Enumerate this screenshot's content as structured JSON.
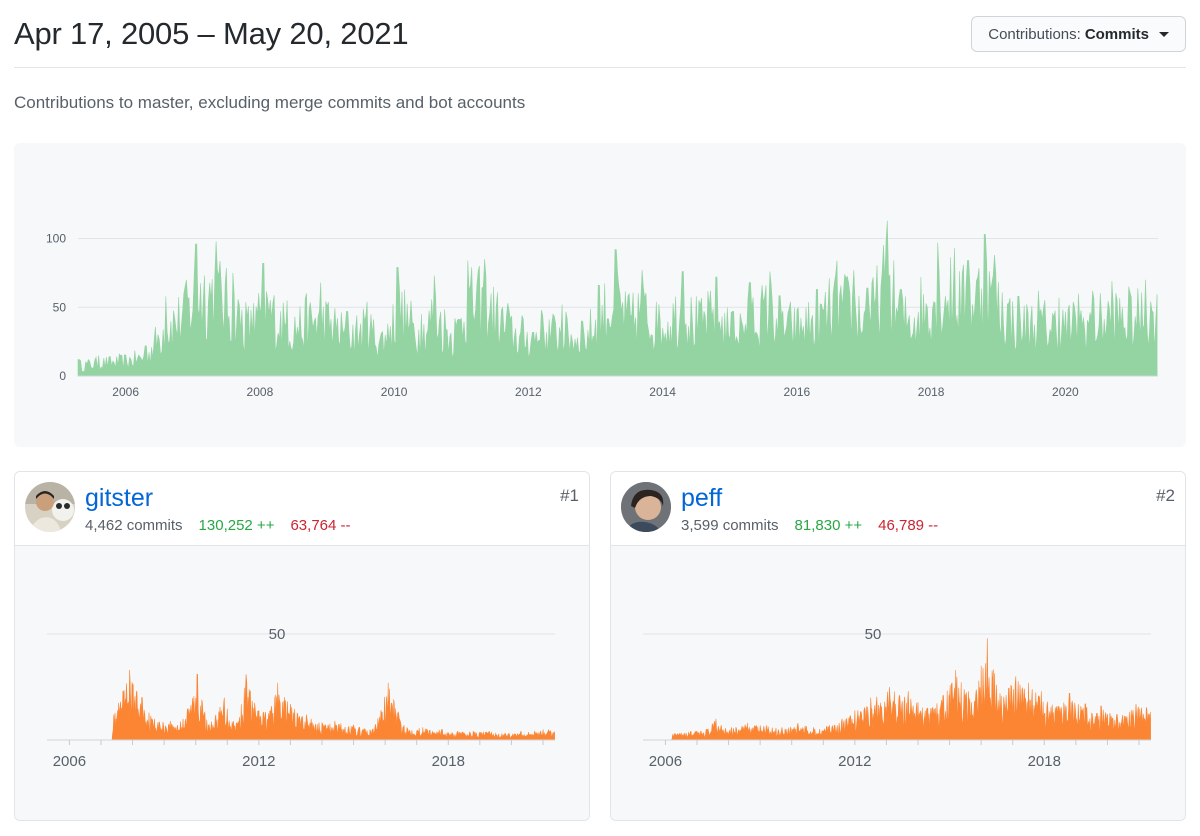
{
  "header": {
    "date_range": "Apr 17, 2005 – May 20, 2021",
    "contrib_label": "Contributions:",
    "contrib_value": "Commits"
  },
  "subtitle": "Contributions to master, excluding merge commits and bot accounts",
  "colors": {
    "main_area": "#94d3a2",
    "user_area": "#fb8532",
    "link": "#0366d6",
    "additions": "#28a745",
    "deletions": "#cb2431"
  },
  "chart_data": [
    {
      "type": "area",
      "series": [
        {
          "values": []
        }
      ],
      "x_tick_labels": [
        "2006",
        "2008",
        "2010",
        "2012",
        "2014",
        "2016",
        "2018",
        "2020"
      ],
      "y_tick_labels": [
        "0",
        "50",
        "100"
      ],
      "xlim": [
        2005.29,
        2021.38
      ],
      "ylim": [
        0,
        120
      ],
      "grid": true,
      "peaks": [
        [
          2005.3,
          12
        ],
        [
          2005.6,
          15
        ],
        [
          2005.9,
          16
        ],
        [
          2006.3,
          22
        ],
        [
          2006.6,
          58
        ],
        [
          2006.9,
          70
        ],
        [
          2007.05,
          96
        ],
        [
          2007.35,
          98
        ],
        [
          2007.6,
          75
        ],
        [
          2007.9,
          53
        ],
        [
          2008.05,
          82
        ],
        [
          2008.4,
          55
        ],
        [
          2008.7,
          60
        ],
        [
          2008.9,
          68
        ],
        [
          2009.3,
          47
        ],
        [
          2009.6,
          54
        ],
        [
          2009.9,
          38
        ],
        [
          2010.05,
          79
        ],
        [
          2010.4,
          45
        ],
        [
          2010.6,
          73
        ],
        [
          2010.9,
          42
        ],
        [
          2011.1,
          84
        ],
        [
          2011.35,
          85
        ],
        [
          2011.7,
          53
        ],
        [
          2011.9,
          44
        ],
        [
          2012.2,
          48
        ],
        [
          2012.5,
          52
        ],
        [
          2012.8,
          40
        ],
        [
          2013.05,
          66
        ],
        [
          2013.3,
          92
        ],
        [
          2013.5,
          60
        ],
        [
          2013.7,
          77
        ],
        [
          2013.9,
          54
        ],
        [
          2014.3,
          76
        ],
        [
          2014.5,
          58
        ],
        [
          2014.8,
          72
        ],
        [
          2015.05,
          47
        ],
        [
          2015.3,
          68
        ],
        [
          2015.6,
          76
        ],
        [
          2015.9,
          54
        ],
        [
          2016.3,
          63
        ],
        [
          2016.6,
          84
        ],
        [
          2016.85,
          77
        ],
        [
          2017.05,
          64
        ],
        [
          2017.35,
          113
        ],
        [
          2017.55,
          63
        ],
        [
          2017.85,
          72
        ],
        [
          2018.1,
          97
        ],
        [
          2018.35,
          93
        ],
        [
          2018.55,
          84
        ],
        [
          2018.8,
          103
        ],
        [
          2018.95,
          88
        ],
        [
          2019.3,
          58
        ],
        [
          2019.6,
          62
        ],
        [
          2019.9,
          57
        ],
        [
          2020.2,
          60
        ],
        [
          2020.4,
          62
        ],
        [
          2020.7,
          69
        ],
        [
          2020.95,
          65
        ],
        [
          2021.2,
          70
        ]
      ]
    },
    {
      "type": "area",
      "series": [
        {
          "name": "gitster",
          "values": []
        }
      ],
      "x_tick_labels": [
        "2006",
        "2012",
        "2018"
      ],
      "y_tick_labels": [
        "50"
      ],
      "xlim": [
        2005.29,
        2021.38
      ],
      "ylim": [
        0,
        58
      ],
      "grid": true,
      "peaks": [
        [
          2007.4,
          12
        ],
        [
          2007.9,
          33
        ],
        [
          2008.3,
          20
        ],
        [
          2008.7,
          10
        ],
        [
          2009.2,
          9
        ],
        [
          2009.6,
          10
        ],
        [
          2010.05,
          31
        ],
        [
          2010.4,
          7
        ],
        [
          2010.9,
          20
        ],
        [
          2011.3,
          8
        ],
        [
          2011.6,
          31
        ],
        [
          2012.0,
          14
        ],
        [
          2012.4,
          16
        ],
        [
          2012.6,
          27
        ],
        [
          2013.0,
          17
        ],
        [
          2013.5,
          12
        ],
        [
          2014.0,
          8
        ],
        [
          2014.4,
          9
        ],
        [
          2015.0,
          7
        ],
        [
          2015.6,
          5
        ],
        [
          2016.1,
          27
        ],
        [
          2016.6,
          7
        ],
        [
          2017.2,
          6
        ],
        [
          2017.8,
          5
        ],
        [
          2018.3,
          4
        ],
        [
          2018.8,
          4
        ],
        [
          2019.3,
          4
        ],
        [
          2019.8,
          3
        ],
        [
          2020.3,
          4
        ],
        [
          2021.0,
          5
        ]
      ]
    },
    {
      "type": "area",
      "series": [
        {
          "name": "peff",
          "values": []
        }
      ],
      "x_tick_labels": [
        "2006",
        "2012",
        "2018"
      ],
      "y_tick_labels": [
        "50"
      ],
      "xlim": [
        2005.29,
        2021.38
      ],
      "ylim": [
        0,
        58
      ],
      "grid": true,
      "peaks": [
        [
          2006.3,
          3
        ],
        [
          2006.8,
          4
        ],
        [
          2007.3,
          5
        ],
        [
          2007.6,
          10
        ],
        [
          2008.1,
          6
        ],
        [
          2008.6,
          8
        ],
        [
          2009.2,
          7
        ],
        [
          2009.7,
          6
        ],
        [
          2010.2,
          8
        ],
        [
          2010.7,
          6
        ],
        [
          2011.2,
          7
        ],
        [
          2011.6,
          10
        ],
        [
          2012.0,
          14
        ],
        [
          2012.5,
          20
        ],
        [
          2013.1,
          25
        ],
        [
          2013.7,
          23
        ],
        [
          2014.3,
          15
        ],
        [
          2014.8,
          21
        ],
        [
          2015.2,
          33
        ],
        [
          2015.6,
          23
        ],
        [
          2016.0,
          35
        ],
        [
          2016.2,
          48
        ],
        [
          2016.6,
          22
        ],
        [
          2017.1,
          30
        ],
        [
          2017.5,
          27
        ],
        [
          2017.9,
          23
        ],
        [
          2018.4,
          16
        ],
        [
          2018.8,
          22
        ],
        [
          2019.3,
          17
        ],
        [
          2019.8,
          16
        ],
        [
          2020.3,
          12
        ],
        [
          2020.9,
          17
        ]
      ]
    }
  ],
  "contributors": [
    {
      "username": "gitster",
      "commits": "4,462 commits",
      "additions": "130,252 ++",
      "deletions": "63,764 --",
      "rank": "#1"
    },
    {
      "username": "peff",
      "commits": "3,599 commits",
      "additions": "81,830 ++",
      "deletions": "46,789 --",
      "rank": "#2"
    }
  ]
}
